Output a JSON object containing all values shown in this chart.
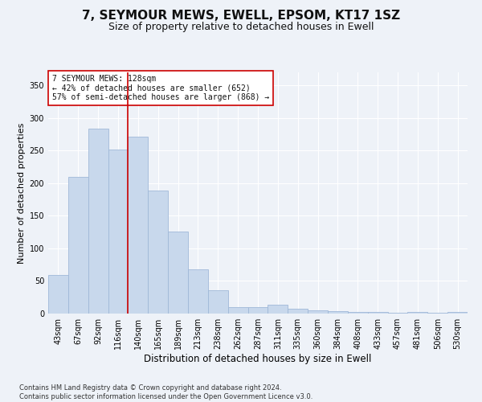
{
  "title": "7, SEYMOUR MEWS, EWELL, EPSOM, KT17 1SZ",
  "subtitle": "Size of property relative to detached houses in Ewell",
  "xlabel": "Distribution of detached houses by size in Ewell",
  "ylabel": "Number of detached properties",
  "categories": [
    "43sqm",
    "67sqm",
    "92sqm",
    "116sqm",
    "140sqm",
    "165sqm",
    "189sqm",
    "213sqm",
    "238sqm",
    "262sqm",
    "287sqm",
    "311sqm",
    "335sqm",
    "360sqm",
    "384sqm",
    "408sqm",
    "433sqm",
    "457sqm",
    "481sqm",
    "506sqm",
    "530sqm"
  ],
  "values": [
    59,
    210,
    284,
    252,
    271,
    189,
    126,
    68,
    36,
    10,
    10,
    13,
    8,
    5,
    4,
    3,
    2,
    1,
    2,
    1,
    3
  ],
  "bar_color": "#c8d8ec",
  "bar_edge_color": "#a0b8d8",
  "marker_line_color": "#cc0000",
  "annotation_text": "7 SEYMOUR MEWS: 128sqm\n← 42% of detached houses are smaller (652)\n57% of semi-detached houses are larger (868) →",
  "annotation_box_color": "#ffffff",
  "annotation_box_edge_color": "#cc0000",
  "ylim": [
    0,
    370
  ],
  "yticks": [
    0,
    50,
    100,
    150,
    200,
    250,
    300,
    350
  ],
  "footer": "Contains HM Land Registry data © Crown copyright and database right 2024.\nContains public sector information licensed under the Open Government Licence v3.0.",
  "bg_color": "#eef2f8",
  "plot_bg_color": "#eef2f8",
  "title_fontsize": 11,
  "subtitle_fontsize": 9,
  "tick_fontsize": 7,
  "ylabel_fontsize": 8,
  "xlabel_fontsize": 8.5,
  "footer_fontsize": 6,
  "annotation_fontsize": 7
}
